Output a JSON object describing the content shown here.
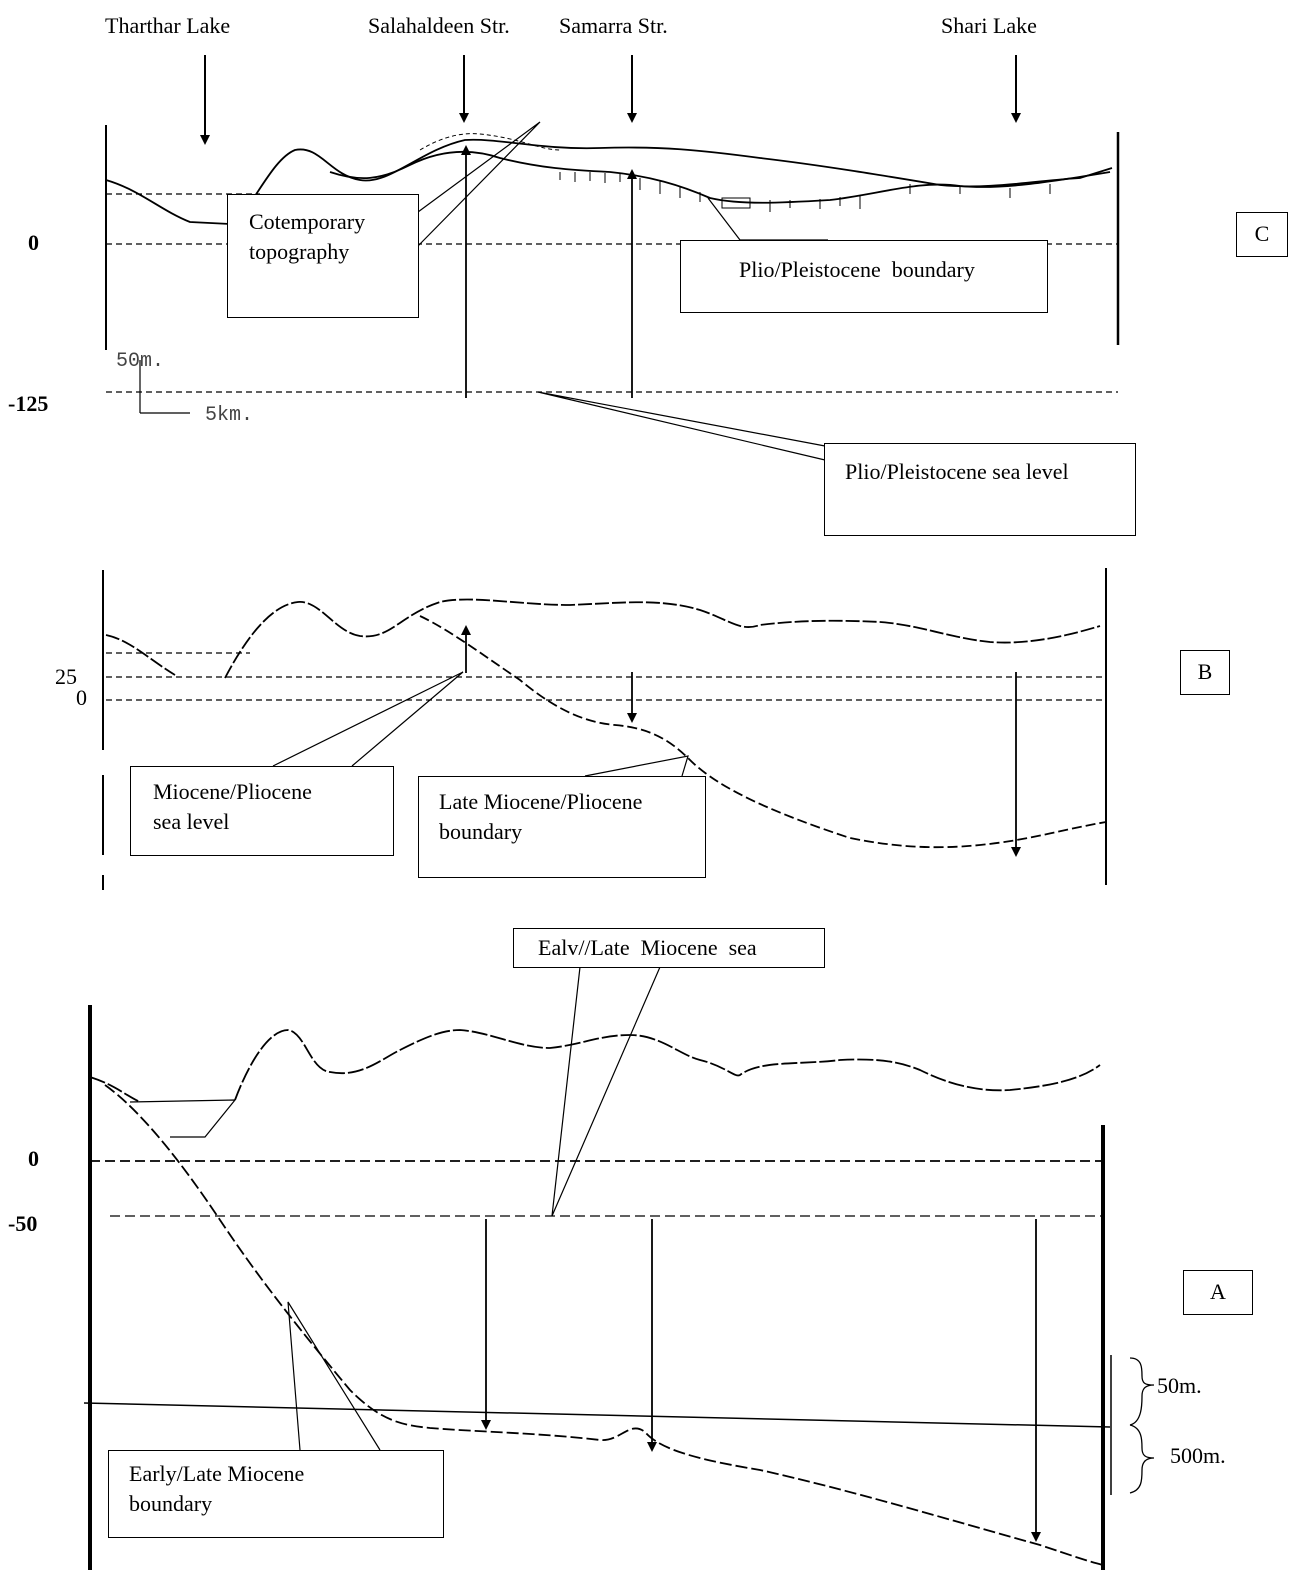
{
  "top_labels": {
    "tharthar": "Tharthar Lake",
    "salahaldeen": "Salahaldeen Str.",
    "samarra": "Samarra Str.",
    "shari": "Shari Lake"
  },
  "panel_c": {
    "letter": "C",
    "zero_label": "0",
    "minus125_label": "-125",
    "scale_vertical": "50m.",
    "scale_horizontal": "5km.",
    "callout_topography": [
      "Cotemporary",
      "topography"
    ],
    "callout_boundary": "Plio/Pleistocene  boundary",
    "callout_sea_level": "Plio/Pleistocene sea level"
  },
  "panel_b": {
    "letter": "B",
    "label_25": "25",
    "label_0": "0",
    "callout_sea_level": [
      "Miocene/Pliocene",
      "sea level"
    ],
    "callout_boundary": [
      "Late Miocene/Pliocene",
      "boundary"
    ]
  },
  "panel_a": {
    "letter": "A",
    "zero_label": "0",
    "minus50_label": "-50",
    "callout_sea": "Ealv//Late  Miocene  sea",
    "callout_boundary": [
      "Early/Late Miocene",
      "boundary"
    ],
    "scale_50": "50m.",
    "scale_500": "500m."
  },
  "colors": {
    "line": "#000000",
    "faint": "#555555",
    "background": "#ffffff"
  }
}
